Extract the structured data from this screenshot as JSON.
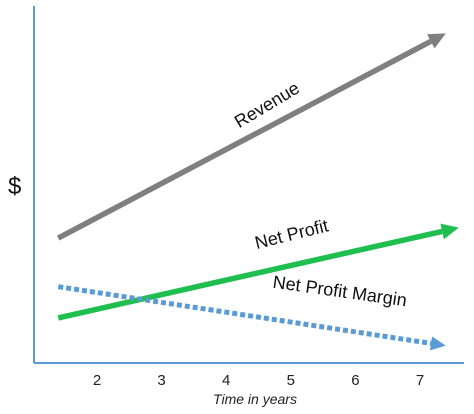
{
  "chart_data": {
    "type": "line",
    "ylabel": "$",
    "xlabel": "Time in years",
    "x_ticks": [
      2,
      3,
      4,
      5,
      6,
      7
    ],
    "xlim": [
      1.45,
      7.35
    ],
    "ylim": [
      0,
      100
    ],
    "series": [
      {
        "name": "Revenue",
        "x": [
          1.4,
          7.4
        ],
        "values": [
          36,
          95
        ],
        "color": "#7f7f7f",
        "style": "solid-arrow"
      },
      {
        "name": "Net Profit",
        "x": [
          1.4,
          7.6
        ],
        "values": [
          13,
          39
        ],
        "color": "#1fbf4f",
        "style": "solid-arrow"
      },
      {
        "name": "Net Profit Margin",
        "x": [
          1.4,
          7.4
        ],
        "values": [
          22,
          5
        ],
        "color": "#5b9bd5",
        "style": "dotted-arrow"
      }
    ],
    "grid": false,
    "legend": "none"
  }
}
